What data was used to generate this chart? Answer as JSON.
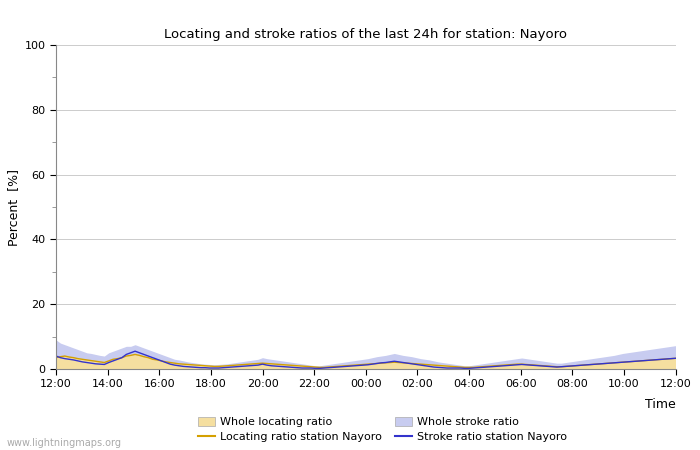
{
  "title": "Locating and stroke ratios of the last 24h for station: Nayoro",
  "ylabel": "Percent  [%]",
  "xlabel": "Time",
  "xlim": [
    0,
    144
  ],
  "ylim": [
    0,
    100
  ],
  "yticks_major": [
    0,
    20,
    40,
    60,
    80,
    100
  ],
  "yticks_minor": [
    10,
    30,
    50,
    70,
    90
  ],
  "xtick_labels": [
    "12:00",
    "14:00",
    "16:00",
    "18:00",
    "20:00",
    "22:00",
    "00:00",
    "02:00",
    "04:00",
    "06:00",
    "08:00",
    "10:00",
    "12:00"
  ],
  "xtick_positions": [
    0,
    12,
    24,
    36,
    48,
    60,
    72,
    84,
    96,
    108,
    120,
    132,
    144
  ],
  "color_whole_locating": "#f5dfa0",
  "color_whole_stroke": "#c8ccf0",
  "color_locating_line": "#d4a000",
  "color_stroke_line": "#3333cc",
  "watermark": "www.lightningmaps.org",
  "legend_labels": [
    "Whole locating ratio",
    "Locating ratio station Nayoro",
    "Whole stroke ratio",
    "Stroke ratio station Nayoro"
  ],
  "whole_locating": [
    3.5,
    3.8,
    4.0,
    3.7,
    3.5,
    3.2,
    3.0,
    2.8,
    2.6,
    2.4,
    2.2,
    2.0,
    2.5,
    3.0,
    3.2,
    3.5,
    4.0,
    4.2,
    4.5,
    4.2,
    3.8,
    3.5,
    3.0,
    2.8,
    2.5,
    2.2,
    2.0,
    1.8,
    1.6,
    1.5,
    1.4,
    1.3,
    1.2,
    1.1,
    1.0,
    0.9,
    0.8,
    0.8,
    0.9,
    1.0,
    1.1,
    1.2,
    1.3,
    1.4,
    1.5,
    1.6,
    1.7,
    1.8,
    1.7,
    1.6,
    1.5,
    1.4,
    1.3,
    1.2,
    1.1,
    1.0,
    0.9,
    0.8,
    0.7,
    0.6,
    0.5,
    0.5,
    0.6,
    0.7,
    0.8,
    0.9,
    1.0,
    1.1,
    1.2,
    1.3,
    1.4,
    1.5,
    1.6,
    1.7,
    1.8,
    1.9,
    2.0,
    2.1,
    2.0,
    1.9,
    1.8,
    1.7,
    1.6,
    1.5,
    1.4,
    1.3,
    1.2,
    1.1,
    1.0,
    0.9,
    0.8,
    0.7,
    0.6,
    0.5,
    0.5,
    0.5,
    0.6,
    0.7,
    0.8,
    0.9,
    1.0,
    1.1,
    1.2,
    1.3,
    1.4,
    1.5,
    1.5,
    1.4,
    1.3,
    1.2,
    1.1,
    1.0,
    0.9,
    0.8,
    0.7,
    0.7,
    0.8,
    0.9,
    1.0,
    1.1,
    1.2,
    1.3,
    1.4,
    1.5,
    1.6,
    1.7,
    1.8,
    1.9,
    2.0,
    2.1,
    2.2,
    2.3,
    2.4,
    2.5,
    2.6,
    2.7,
    2.8,
    2.9,
    3.0,
    3.1,
    3.2,
    3.3
  ],
  "locating_station": [
    3.5,
    3.8,
    4.0,
    3.7,
    3.5,
    3.2,
    3.0,
    2.8,
    2.6,
    2.4,
    2.2,
    2.0,
    2.5,
    3.0,
    3.2,
    3.5,
    4.0,
    4.2,
    4.5,
    4.2,
    3.8,
    3.5,
    3.0,
    2.8,
    2.5,
    2.2,
    2.0,
    1.8,
    1.6,
    1.5,
    1.4,
    1.3,
    1.2,
    1.1,
    1.0,
    0.9,
    0.8,
    0.8,
    0.9,
    1.0,
    1.1,
    1.2,
    1.3,
    1.4,
    1.5,
    1.6,
    1.7,
    1.8,
    1.7,
    1.6,
    1.5,
    1.4,
    1.3,
    1.2,
    1.1,
    1.0,
    0.9,
    0.8,
    0.7,
    0.6,
    0.5,
    0.5,
    0.6,
    0.7,
    0.8,
    0.9,
    1.0,
    1.1,
    1.2,
    1.3,
    1.4,
    1.5,
    1.6,
    1.7,
    1.8,
    1.9,
    2.0,
    2.1,
    2.0,
    1.9,
    1.8,
    1.7,
    1.6,
    1.5,
    1.4,
    1.3,
    1.2,
    1.1,
    1.0,
    0.9,
    0.8,
    0.7,
    0.6,
    0.5,
    0.5,
    0.5,
    0.6,
    0.7,
    0.8,
    0.9,
    1.0,
    1.1,
    1.2,
    1.3,
    1.4,
    1.5,
    1.5,
    1.4,
    1.3,
    1.2,
    1.1,
    1.0,
    0.9,
    0.8,
    0.7,
    0.7,
    0.8,
    0.9,
    1.0,
    1.1,
    1.2,
    1.3,
    1.4,
    1.5,
    1.6,
    1.7,
    1.8,
    1.9,
    2.0,
    2.1,
    2.2,
    2.3,
    2.4,
    2.5,
    2.6,
    2.7,
    2.8,
    2.9,
    3.0,
    3.1,
    3.2,
    3.3
  ],
  "whole_stroke": [
    9.0,
    8.0,
    7.5,
    7.0,
    6.5,
    6.0,
    5.5,
    5.0,
    4.8,
    4.5,
    4.2,
    4.0,
    5.0,
    5.5,
    6.0,
    6.5,
    7.0,
    7.0,
    7.5,
    7.0,
    6.5,
    6.0,
    5.5,
    5.0,
    4.5,
    4.0,
    3.5,
    3.0,
    2.8,
    2.5,
    2.2,
    2.0,
    1.8,
    1.6,
    1.5,
    1.4,
    1.3,
    1.4,
    1.5,
    1.6,
    1.8,
    2.0,
    2.2,
    2.4,
    2.6,
    2.8,
    3.0,
    3.5,
    3.2,
    3.0,
    2.8,
    2.6,
    2.4,
    2.2,
    2.0,
    1.8,
    1.6,
    1.4,
    1.2,
    1.0,
    1.0,
    1.2,
    1.4,
    1.6,
    1.8,
    2.0,
    2.2,
    2.4,
    2.6,
    2.8,
    3.0,
    3.2,
    3.5,
    3.8,
    4.0,
    4.2,
    4.5,
    4.8,
    4.5,
    4.2,
    4.0,
    3.8,
    3.5,
    3.2,
    3.0,
    2.8,
    2.5,
    2.2,
    2.0,
    1.8,
    1.6,
    1.4,
    1.2,
    1.0,
    1.0,
    1.2,
    1.4,
    1.6,
    1.8,
    2.0,
    2.2,
    2.4,
    2.6,
    2.8,
    3.0,
    3.2,
    3.4,
    3.2,
    3.0,
    2.8,
    2.6,
    2.4,
    2.2,
    2.0,
    1.8,
    1.8,
    2.0,
    2.2,
    2.4,
    2.6,
    2.8,
    3.0,
    3.2,
    3.4,
    3.6,
    3.8,
    4.0,
    4.2,
    4.5,
    4.8,
    5.0,
    5.2,
    5.4,
    5.6,
    5.8,
    6.0,
    6.2,
    6.4,
    6.6,
    6.8,
    7.0,
    7.2
  ],
  "stroke_station": [
    4.0,
    3.5,
    3.2,
    3.0,
    2.8,
    2.5,
    2.2,
    2.0,
    1.8,
    1.6,
    1.5,
    1.4,
    2.0,
    2.5,
    3.0,
    3.5,
    4.5,
    5.0,
    5.5,
    5.0,
    4.5,
    4.0,
    3.5,
    3.0,
    2.5,
    2.0,
    1.5,
    1.2,
    1.0,
    0.8,
    0.7,
    0.6,
    0.5,
    0.4,
    0.4,
    0.3,
    0.3,
    0.3,
    0.4,
    0.5,
    0.6,
    0.7,
    0.8,
    0.9,
    1.0,
    1.1,
    1.2,
    1.5,
    1.2,
    1.0,
    0.9,
    0.8,
    0.7,
    0.6,
    0.5,
    0.4,
    0.3,
    0.3,
    0.3,
    0.2,
    0.2,
    0.3,
    0.4,
    0.5,
    0.6,
    0.7,
    0.8,
    0.9,
    1.0,
    1.1,
    1.2,
    1.3,
    1.5,
    1.7,
    1.9,
    2.0,
    2.2,
    2.4,
    2.2,
    2.0,
    1.8,
    1.6,
    1.4,
    1.2,
    1.0,
    0.8,
    0.6,
    0.5,
    0.4,
    0.3,
    0.3,
    0.3,
    0.3,
    0.2,
    0.2,
    0.3,
    0.4,
    0.5,
    0.6,
    0.7,
    0.8,
    0.9,
    1.0,
    1.1,
    1.2,
    1.3,
    1.4,
    1.3,
    1.2,
    1.1,
    1.0,
    0.9,
    0.8,
    0.7,
    0.6,
    0.7,
    0.8,
    0.9,
    1.0,
    1.1,
    1.2,
    1.3,
    1.4,
    1.5,
    1.6,
    1.7,
    1.8,
    1.9,
    2.0,
    2.1,
    2.2,
    2.3,
    2.4,
    2.5,
    2.6,
    2.7,
    2.8,
    2.9,
    3.0,
    3.1,
    3.2,
    3.3
  ]
}
